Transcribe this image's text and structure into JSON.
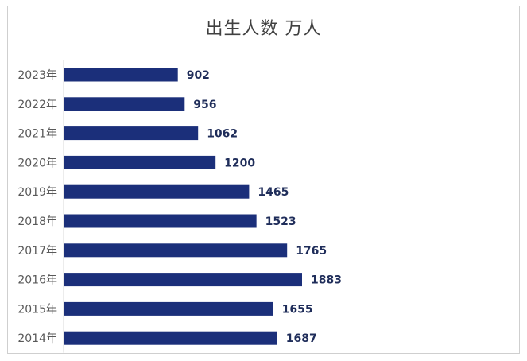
{
  "chart_data": {
    "type": "bar",
    "orientation": "horizontal",
    "title": "出生人数 万人",
    "xlabel": "",
    "ylabel": "",
    "categories": [
      "2023年",
      "2022年",
      "2021年",
      "2020年",
      "2019年",
      "2018年",
      "2017年",
      "2016年",
      "2015年",
      "2014年"
    ],
    "values": [
      902,
      956,
      1062,
      1200,
      1465,
      1523,
      1765,
      1883,
      1655,
      1687
    ],
    "value_labels": [
      "902",
      "956",
      "1062",
      "1200",
      "1465",
      "1523",
      "1765",
      "1883",
      "1655",
      "1687"
    ],
    "xlim": [
      0,
      1883
    ],
    "grid": false,
    "legend": "none",
    "bar_color": "#1b2f7a",
    "label_color": "#1f2d5a"
  }
}
